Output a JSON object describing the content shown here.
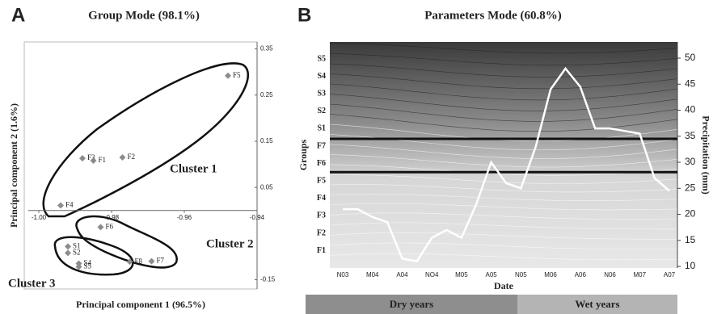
{
  "chart_data": [
    {
      "type": "scatter",
      "panel": "A",
      "title": "Group Mode (98.1%)",
      "x_label": "Principal component 1 (96.5%)",
      "y_label": "Principal component 2 (1.6%)",
      "point_labels": [
        "F5",
        "F3",
        "F1",
        "F2",
        "F4",
        "F6",
        "F8",
        "F7",
        "S1",
        "S2",
        "S4",
        "S5"
      ],
      "x": [
        -0.948,
        -0.988,
        -0.985,
        -0.977,
        -0.994,
        -0.983,
        -0.975,
        -0.969,
        -0.992,
        -0.992,
        -0.989,
        -0.989
      ],
      "values": [
        0.292,
        0.113,
        0.108,
        0.115,
        0.011,
        -0.036,
        -0.111,
        -0.11,
        -0.078,
        -0.092,
        -0.115,
        -0.122
      ],
      "color": "#8c8c8c",
      "xlim": [
        -1.004,
        -0.94
      ],
      "ylim": [
        -0.17,
        0.365
      ],
      "xticks": [
        {
          "value": -1,
          "label": "-1.00"
        },
        -0.98,
        -0.96,
        -0.94
      ],
      "yticks": [
        0.35,
        0.25,
        0.15,
        0.05,
        -0.15
      ],
      "annotations": [
        "Cluster 1",
        "Cluster 2",
        "Cluster 3"
      ]
    },
    {
      "type": "line",
      "panel": "B",
      "title": "Parameters Mode (60.8%)",
      "x_label": "Date",
      "y_label": "Groups",
      "y2_label": "Precipitation (mm)",
      "categories": [
        "N03",
        null,
        "M04",
        null,
        "A04",
        null,
        "NO4",
        null,
        "M05",
        null,
        "A05",
        null,
        "N05",
        null,
        "M06",
        null,
        "A06",
        null,
        "N06",
        null,
        "M07",
        null,
        "A07"
      ],
      "groups": [
        "S5",
        "S4",
        "S3",
        "S2",
        "S1",
        "F7",
        "F6",
        "F5",
        "F4",
        "F3",
        "F2",
        "F1"
      ],
      "series": [
        {
          "name": "Precipitation (mm)",
          "color": "#ffffff",
          "axis": "y2",
          "values": [
            21,
            21,
            19.5,
            18.5,
            11.5,
            11,
            15.5,
            17,
            15.5,
            22,
            30,
            26,
            25,
            33,
            44,
            48,
            44.5,
            36.5,
            36.5,
            36,
            35.5,
            27,
            24.5
          ]
        }
      ],
      "hlines": [
        34.5,
        28.1
      ],
      "y2lim": [
        9.7,
        53.1
      ],
      "y2ticks": [
        50,
        45,
        40,
        35,
        30,
        25,
        20,
        15,
        10
      ],
      "periods": [
        "Dry years",
        "Wet years"
      ]
    }
  ]
}
